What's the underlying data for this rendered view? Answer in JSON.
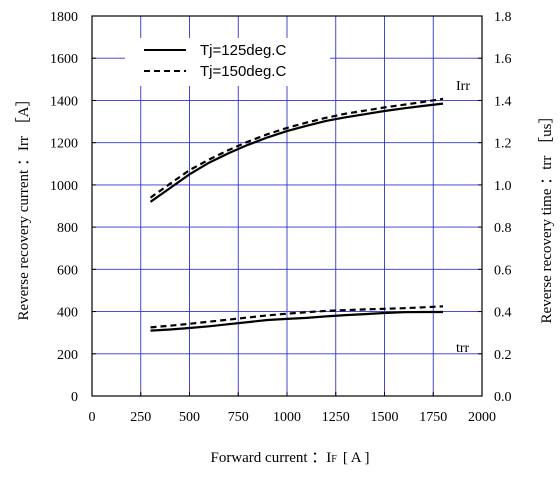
{
  "chart_data": {
    "type": "line",
    "xlabel_main": "Forward current ：I",
    "xlabel_sub": "F",
    "xlabel_unit": "[ A ]",
    "ylabel_left": "Reverse recovery current ：Irr ［A］",
    "ylabel_right": "Reverse recovery time ：trr ［us］",
    "xlim": [
      0,
      2000
    ],
    "ylim_left": [
      0,
      1800
    ],
    "ylim_right": [
      0.0,
      1.8
    ],
    "x_ticks": [
      "0",
      "250",
      "500",
      "750",
      "1000",
      "1250",
      "1500",
      "1750",
      "2000"
    ],
    "y_left_ticks": [
      "0",
      "200",
      "400",
      "600",
      "800",
      "1000",
      "1200",
      "1400",
      "1600",
      "1800"
    ],
    "y_right_ticks": [
      "0.0",
      "0.2",
      "0.4",
      "0.6",
      "0.8",
      "1.0",
      "1.2",
      "1.4",
      "1.6",
      "1.8"
    ],
    "grid": true,
    "grid_color": "#3333cc",
    "legend_position": "top-left",
    "legend": [
      {
        "label": "Tj=125deg.C",
        "style": "solid"
      },
      {
        "label": "Tj=150deg.C",
        "style": "dashed"
      }
    ],
    "series_labels": {
      "irr": "Irr",
      "trr": "trr"
    },
    "series": [
      {
        "name": "Tj=125deg.C",
        "quantity": "Irr",
        "axis": "left",
        "style": "solid",
        "x": [
          300,
          400,
          500,
          600,
          700,
          800,
          900,
          1000,
          1100,
          1200,
          1300,
          1400,
          1500,
          1600,
          1700,
          1800
        ],
        "values": [
          920,
          985,
          1050,
          1105,
          1150,
          1190,
          1225,
          1255,
          1280,
          1303,
          1320,
          1335,
          1350,
          1363,
          1374,
          1385
        ]
      },
      {
        "name": "Tj=150deg.C",
        "quantity": "Irr",
        "axis": "left",
        "style": "dashed",
        "x": [
          300,
          400,
          500,
          600,
          700,
          800,
          900,
          1000,
          1100,
          1200,
          1300,
          1400,
          1500,
          1600,
          1700,
          1800
        ],
        "values": [
          940,
          1005,
          1070,
          1120,
          1165,
          1205,
          1240,
          1270,
          1295,
          1318,
          1337,
          1352,
          1367,
          1380,
          1393,
          1408
        ]
      },
      {
        "name": "Tj=125deg.C",
        "quantity": "trr",
        "axis": "right",
        "style": "solid",
        "x": [
          300,
          400,
          500,
          600,
          700,
          800,
          900,
          1000,
          1100,
          1200,
          1300,
          1400,
          1500,
          1600,
          1700,
          1800
        ],
        "values": [
          0.31,
          0.315,
          0.322,
          0.33,
          0.34,
          0.35,
          0.36,
          0.365,
          0.37,
          0.377,
          0.383,
          0.388,
          0.393,
          0.397,
          0.398,
          0.398
        ]
      },
      {
        "name": "Tj=150deg.C",
        "quantity": "trr",
        "axis": "right",
        "style": "dashed",
        "x": [
          300,
          400,
          500,
          600,
          700,
          800,
          900,
          1000,
          1100,
          1200,
          1300,
          1400,
          1500,
          1600,
          1700,
          1800
        ],
        "values": [
          0.325,
          0.333,
          0.342,
          0.352,
          0.362,
          0.372,
          0.382,
          0.39,
          0.397,
          0.403,
          0.407,
          0.41,
          0.413,
          0.416,
          0.42,
          0.425
        ]
      }
    ]
  }
}
